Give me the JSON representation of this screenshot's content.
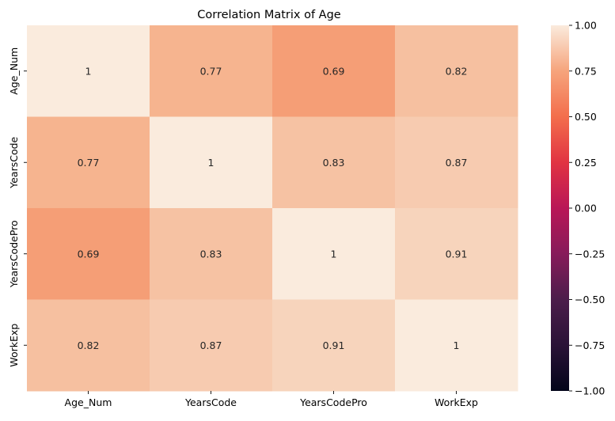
{
  "chart_data": {
    "type": "heatmap",
    "title": "Correlation Matrix of Age",
    "xlabel": "",
    "ylabel": "",
    "x_categories": [
      "Age_Num",
      "YearsCode",
      "YearsCodePro",
      "WorkExp"
    ],
    "y_categories": [
      "Age_Num",
      "YearsCode",
      "YearsCodePro",
      "WorkExp"
    ],
    "values": [
      [
        1,
        0.77,
        0.69,
        0.82
      ],
      [
        0.77,
        1,
        0.83,
        0.87
      ],
      [
        0.69,
        0.83,
        1,
        0.91
      ],
      [
        0.82,
        0.87,
        0.91,
        1
      ]
    ],
    "value_labels": [
      [
        "1",
        "0.77",
        "0.69",
        "0.82"
      ],
      [
        "0.77",
        "1",
        "0.83",
        "0.87"
      ],
      [
        "0.69",
        "0.83",
        "1",
        "0.91"
      ],
      [
        "0.82",
        "0.87",
        "0.91",
        "1"
      ]
    ],
    "vmin": -1.0,
    "vmax": 1.0,
    "colormap": "rocket",
    "colorbar_ticks": [
      1.0,
      0.75,
      0.5,
      0.25,
      0.0,
      -0.25,
      -0.5,
      -0.75,
      -1.0
    ],
    "colorbar_tick_labels": [
      "1.00",
      "0.75",
      "0.50",
      "0.25",
      "0.00",
      "−0.25",
      "−0.50",
      "−0.75",
      "−1.00"
    ],
    "annotation_color": "#262626",
    "grid": false
  }
}
